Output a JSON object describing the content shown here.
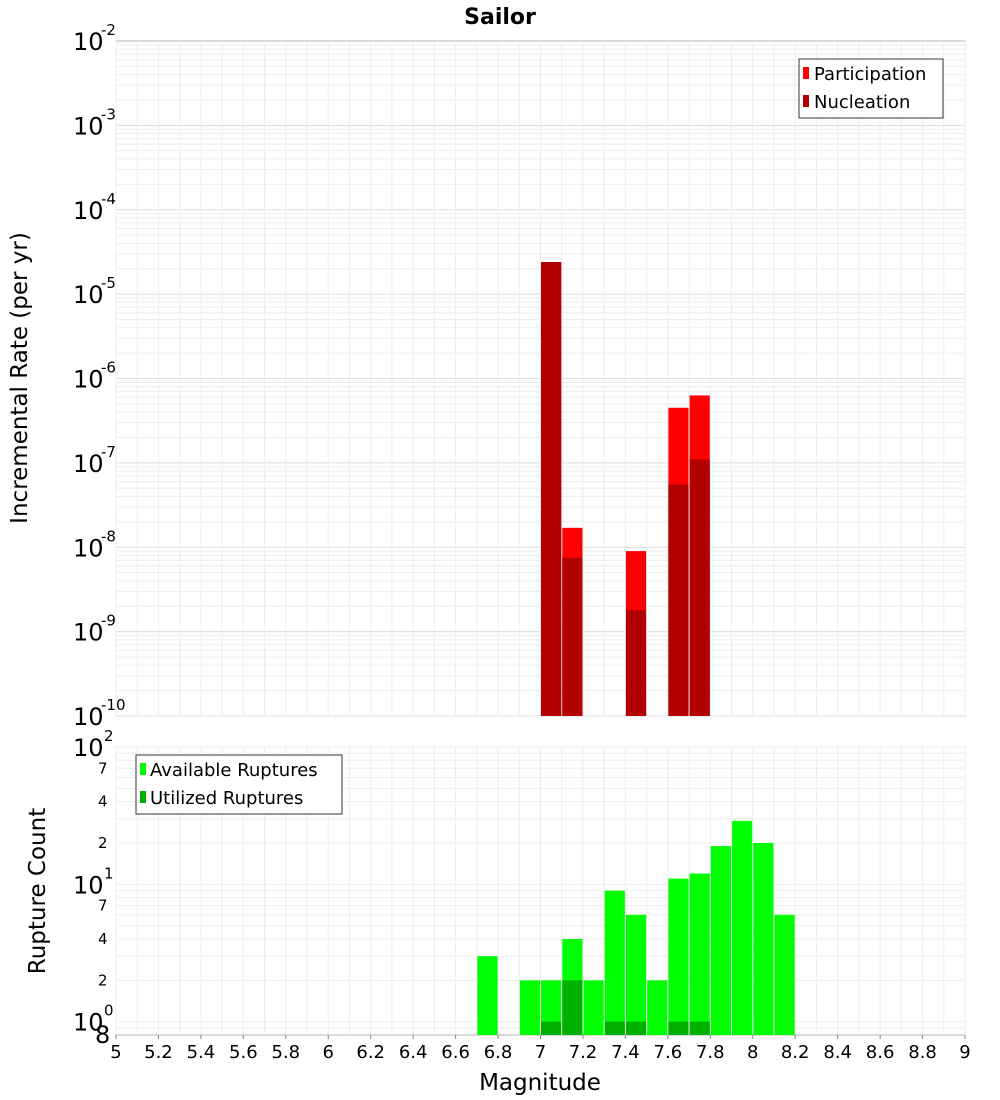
{
  "chart_data": [
    {
      "type": "bar",
      "title": "Sailor",
      "ylabel": "Incremental Rate (per yr)",
      "yscale": "log",
      "ylim": [
        1e-10,
        0.01
      ],
      "xlim": [
        5,
        9
      ],
      "grid": true,
      "legend_position": "top-right",
      "y_ticks": [
        {
          "base": "10",
          "exp": "-10",
          "value": 1e-10
        },
        {
          "base": "10",
          "exp": "-9",
          "value": 1e-09
        },
        {
          "base": "10",
          "exp": "-8",
          "value": 1e-08
        },
        {
          "base": "10",
          "exp": "-7",
          "value": 1e-07
        },
        {
          "base": "10",
          "exp": "-6",
          "value": 1e-06
        },
        {
          "base": "10",
          "exp": "-5",
          "value": 1e-05
        },
        {
          "base": "10",
          "exp": "-4",
          "value": 0.0001
        },
        {
          "base": "10",
          "exp": "-3",
          "value": 0.001
        },
        {
          "base": "10",
          "exp": "-2",
          "value": 0.01
        }
      ],
      "series": [
        {
          "name": "Participation",
          "color": "#ff0000",
          "points": [
            {
              "x": 7.05,
              "y": 2.4e-05
            },
            {
              "x": 7.15,
              "y": 1.7e-08
            },
            {
              "x": 7.45,
              "y": 9e-09
            },
            {
              "x": 7.65,
              "y": 4.5e-07
            },
            {
              "x": 7.75,
              "y": 6.3e-07
            }
          ]
        },
        {
          "name": "Nucleation",
          "color": "#b00000",
          "points": [
            {
              "x": 7.05,
              "y": 2.4e-05
            },
            {
              "x": 7.15,
              "y": 7.5e-09
            },
            {
              "x": 7.45,
              "y": 1.8e-09
            },
            {
              "x": 7.65,
              "y": 5.5e-08
            },
            {
              "x": 7.75,
              "y": 1.1e-07
            }
          ]
        }
      ]
    },
    {
      "type": "bar",
      "ylabel": "Rupture Count",
      "xlabel": "Magnitude",
      "yscale": "log",
      "ylim": [
        0.8,
        100
      ],
      "xlim": [
        5,
        9
      ],
      "grid": true,
      "legend_position": "top-left",
      "x_ticks": [
        "5",
        "5.2",
        "5.4",
        "5.6",
        "5.8",
        "6",
        "6.2",
        "6.4",
        "6.6",
        "6.8",
        "7",
        "7.2",
        "7.4",
        "7.6",
        "7.8",
        "8",
        "8.2",
        "8.4",
        "8.6",
        "8.8",
        "9"
      ],
      "y_major_ticks": [
        {
          "base": "10",
          "exp": "0",
          "value": 1
        },
        {
          "base": "10",
          "exp": "1",
          "value": 10
        },
        {
          "base": "10",
          "exp": "2",
          "value": 100
        }
      ],
      "y_minor_ticks": [
        {
          "label": "8",
          "value": 0.8
        },
        {
          "label": "2",
          "value": 2
        },
        {
          "label": "4",
          "value": 4
        },
        {
          "label": "7",
          "value": 7
        },
        {
          "label": "2",
          "value": 20
        },
        {
          "label": "4",
          "value": 40
        },
        {
          "label": "7",
          "value": 70
        }
      ],
      "series": [
        {
          "name": "Available Ruptures",
          "color": "#00ff00",
          "points": [
            {
              "x": 6.75,
              "y": 3
            },
            {
              "x": 6.95,
              "y": 2
            },
            {
              "x": 7.05,
              "y": 2
            },
            {
              "x": 7.15,
              "y": 4
            },
            {
              "x": 7.25,
              "y": 2
            },
            {
              "x": 7.35,
              "y": 9
            },
            {
              "x": 7.45,
              "y": 6
            },
            {
              "x": 7.55,
              "y": 2
            },
            {
              "x": 7.65,
              "y": 11
            },
            {
              "x": 7.75,
              "y": 12
            },
            {
              "x": 7.85,
              "y": 19
            },
            {
              "x": 7.95,
              "y": 29
            },
            {
              "x": 8.05,
              "y": 20
            },
            {
              "x": 8.15,
              "y": 6
            }
          ]
        },
        {
          "name": "Utilized Ruptures",
          "color": "#00b000",
          "points": [
            {
              "x": 7.05,
              "y": 1
            },
            {
              "x": 7.15,
              "y": 2
            },
            {
              "x": 7.35,
              "y": 1
            },
            {
              "x": 7.45,
              "y": 1
            },
            {
              "x": 7.65,
              "y": 1
            },
            {
              "x": 7.75,
              "y": 1
            }
          ]
        }
      ]
    }
  ]
}
